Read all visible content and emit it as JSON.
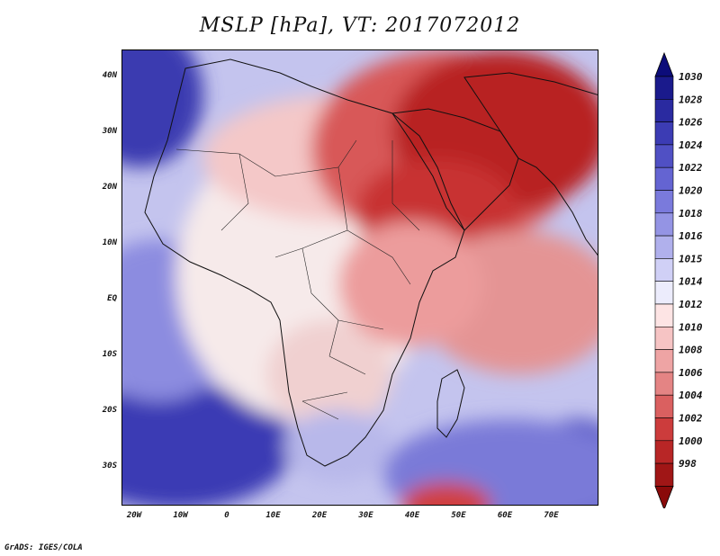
{
  "title": "MSLP [hPa], VT: 2017072012",
  "footer": "GrADS: IGES/COLA",
  "axes": {
    "x_ticks": [
      "20W",
      "10W",
      "0",
      "10E",
      "20E",
      "30E",
      "40E",
      "50E",
      "60E",
      "70E"
    ],
    "y_ticks": [
      "40N",
      "30N",
      "20N",
      "10N",
      "EQ",
      "10S",
      "20S",
      "30S"
    ]
  },
  "colorbar": {
    "levels": [
      "1030",
      "1028",
      "1026",
      "1024",
      "1022",
      "1020",
      "1018",
      "1016",
      "1015",
      "1014",
      "1012",
      "1010",
      "1008",
      "1006",
      "1004",
      "1002",
      "1000",
      "998"
    ],
    "colors": [
      "#1a1a8c",
      "#2a2aa0",
      "#3c3cb4",
      "#5050c4",
      "#6464d2",
      "#7a7adc",
      "#9494e4",
      "#b0b0ec",
      "#d0d0f6",
      "#ececfc",
      "#fde4e4",
      "#f6c4c4",
      "#eea4a4",
      "#e48484",
      "#da6060",
      "#cc3c3c",
      "#b82626",
      "#a01616"
    ],
    "top_cap_color": "#0c0c7a",
    "bottom_cap_color": "#8a0a0a"
  },
  "map": {
    "region": "Africa and Middle East",
    "ocean_color": "#d6d6f2"
  }
}
